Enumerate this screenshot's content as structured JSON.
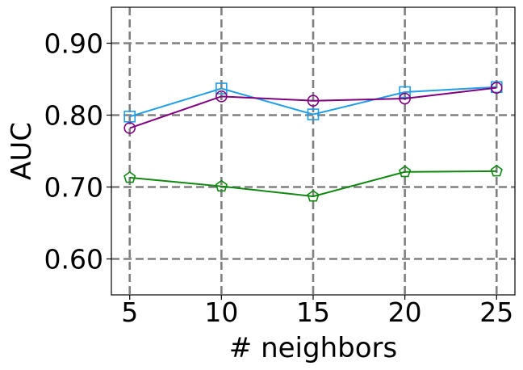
{
  "chart_data": {
    "type": "line",
    "xlabel": "# neighbors",
    "ylabel": "AUC",
    "x": [
      5,
      10,
      15,
      20,
      25
    ],
    "xticks": [
      "5",
      "10",
      "15",
      "20",
      "25"
    ],
    "yticks": [
      "0.60",
      "0.70",
      "0.80",
      "0.90"
    ],
    "xlim": [
      4,
      26
    ],
    "ylim": [
      0.55,
      0.95
    ],
    "grid": true,
    "series": [
      {
        "color": "#1f9ee8",
        "marker": "square",
        "values": [
          0.798,
          0.837,
          0.801,
          0.832,
          0.839
        ]
      },
      {
        "color": "#800080",
        "marker": "circle",
        "values": [
          0.782,
          0.826,
          0.82,
          0.823,
          0.838
        ]
      },
      {
        "color": "#118811",
        "marker": "pentagon",
        "values": [
          0.713,
          0.701,
          0.687,
          0.721,
          0.722
        ]
      }
    ]
  }
}
